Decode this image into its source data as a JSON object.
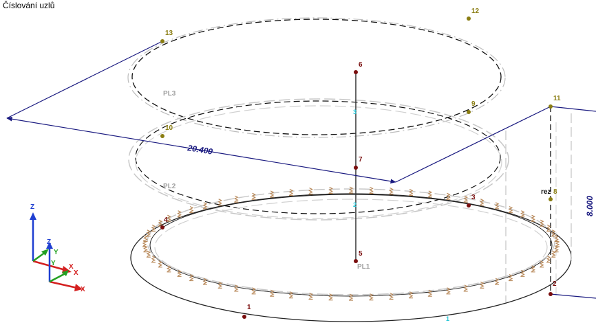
{
  "title": "Číslování uzlů",
  "colors": {
    "node_bottom": "#7a0e0e",
    "node_top": "#8a7d12",
    "member_label": "#29c6d6",
    "dimension": "#1a1a80",
    "support": "#b8895a",
    "plane_label": "#a0a0a0"
  },
  "nodes": {
    "n1": "1",
    "n2": "2",
    "n3": "3",
    "n4": "4",
    "n5": "5",
    "n6": "6",
    "n7": "7",
    "n8": "8",
    "n9": "9",
    "n10": "10",
    "n11": "11",
    "n12": "12",
    "n13": "13"
  },
  "members": {
    "m1": "1",
    "m2": "2",
    "m3": "3"
  },
  "planes": {
    "pl1": "PL1",
    "pl2": "PL2",
    "pl3": "PL3"
  },
  "dimensions": {
    "span": "20.400",
    "height": "8.000"
  },
  "cut_label": "rez",
  "axes": {
    "big": [
      "Z",
      "Y",
      "X"
    ],
    "small": [
      "Z",
      "Y",
      "X"
    ]
  }
}
